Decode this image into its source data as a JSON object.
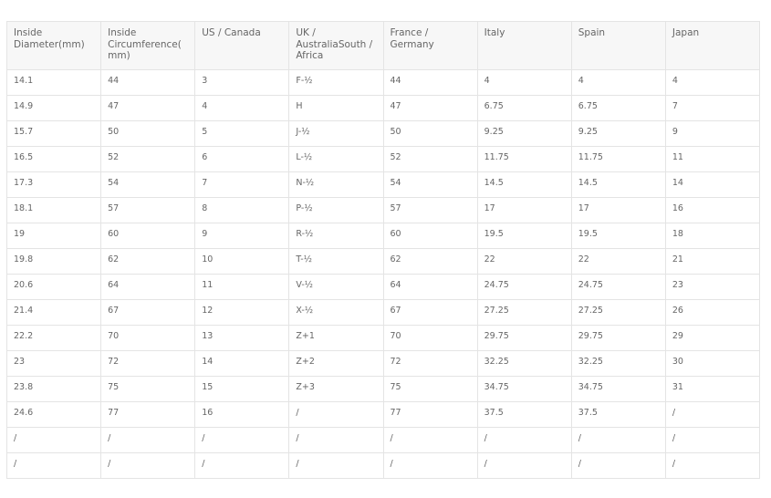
{
  "table": {
    "headers": [
      "Inside Diameter(mm)",
      "Inside Circumference(mm)",
      "US / Canada",
      "UK / AustraliaSouth / Africa",
      "France / Germany",
      "Italy",
      "Spain",
      "Japan"
    ],
    "rows": [
      [
        "14.1",
        "44",
        "3",
        "F-½",
        "44",
        "4",
        "4",
        "4"
      ],
      [
        "14.9",
        "47",
        "4",
        "H",
        "47",
        "6.75",
        "6.75",
        "7"
      ],
      [
        "15.7",
        "50",
        "5",
        "J-½",
        "50",
        "9.25",
        "9.25",
        "9"
      ],
      [
        "16.5",
        "52",
        "6",
        "L-½",
        "52",
        "11.75",
        "11.75",
        "11"
      ],
      [
        "17.3",
        "54",
        "7",
        "N-½",
        "54",
        "14.5",
        "14.5",
        "14"
      ],
      [
        "18.1",
        "57",
        "8",
        "P-½",
        "57",
        "17",
        "17",
        "16"
      ],
      [
        "19",
        "60",
        "9",
        "R-½",
        "60",
        "19.5",
        "19.5",
        "18"
      ],
      [
        "19.8",
        "62",
        "10",
        "T-½",
        "62",
        "22",
        "22",
        "21"
      ],
      [
        "20.6",
        "64",
        "11",
        "V-½",
        "64",
        "24.75",
        "24.75",
        "23"
      ],
      [
        "21.4",
        "67",
        "12",
        "X-½",
        "67",
        "27.25",
        "27.25",
        "26"
      ],
      [
        "22.2",
        "70",
        "13",
        "Z+1",
        "70",
        "29.75",
        "29.75",
        "29"
      ],
      [
        "23",
        "72",
        "14",
        "Z+2",
        "72",
        "32.25",
        "32.25",
        "30"
      ],
      [
        "23.8",
        "75",
        "15",
        "Z+3",
        "75",
        "34.75",
        "34.75",
        "31"
      ],
      [
        "24.6",
        "77",
        "16",
        "/",
        "77",
        "37.5",
        "37.5",
        "/"
      ],
      [
        "/",
        "/",
        "/",
        "/",
        "/",
        "/",
        "/",
        "/"
      ],
      [
        "/",
        "/",
        "/",
        "/",
        "/",
        "/",
        "/",
        "/"
      ]
    ]
  }
}
